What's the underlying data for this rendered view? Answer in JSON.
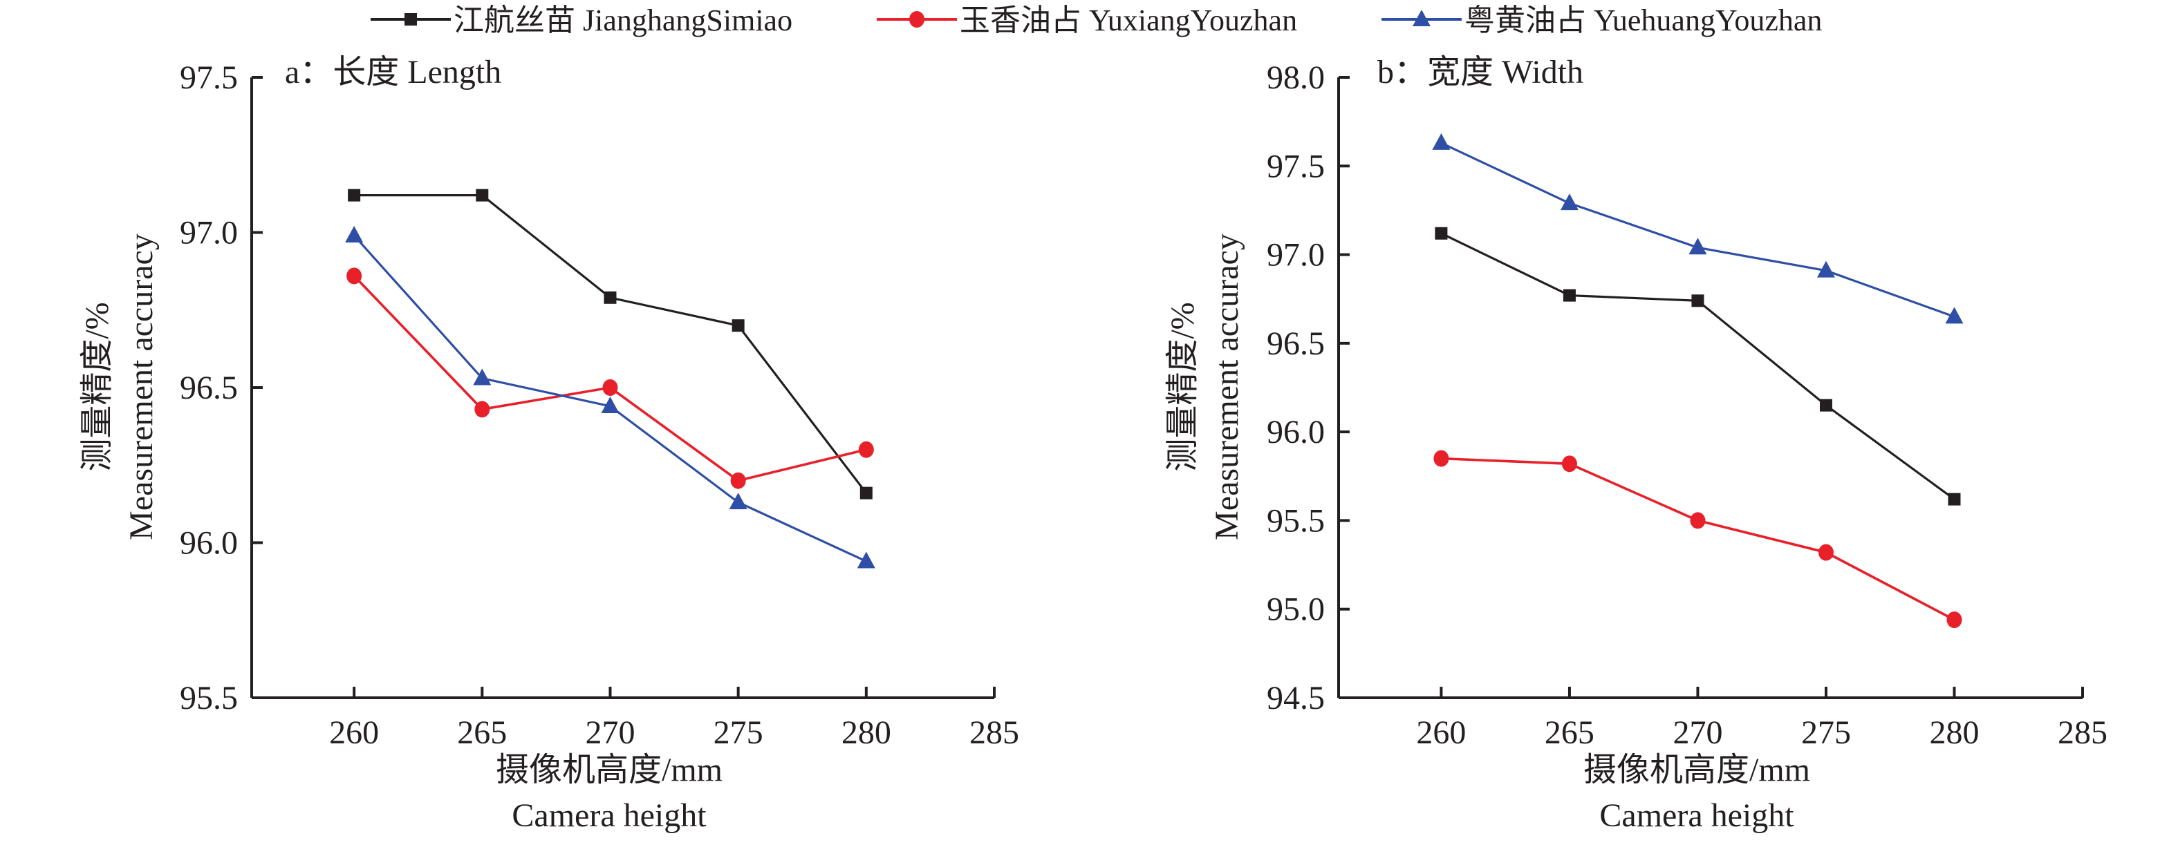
{
  "legend": [
    {
      "name": "江航丝苗 JianghangSimiao",
      "color": "#231f20",
      "marker": "square"
    },
    {
      "name": "玉香油占 YuxiangYouzhan",
      "color": "#e8202a",
      "marker": "circle"
    },
    {
      "name": "粤黄油占 YuehuangYouzhan",
      "color": "#2e4fa5",
      "marker": "triangle"
    }
  ],
  "chart_data": [
    {
      "type": "line",
      "title": "a：长度 Length",
      "xlabel": "摄像机高度/mm",
      "xlabel2": "Camera height",
      "ylabel": "测量精度/%",
      "ylabel2": "Measurement accuracy",
      "x": [
        260,
        265,
        270,
        275,
        280
      ],
      "xticks": [
        260,
        265,
        270,
        275,
        280,
        285
      ],
      "xlim": [
        256,
        285
      ],
      "ylim": [
        95.5,
        97.5
      ],
      "yticks": [
        "95.5",
        "96.0",
        "96.5",
        "97.0",
        "97.5"
      ],
      "grid": false,
      "series": [
        {
          "name": "江航丝苗 JianghangSimiao",
          "values": [
            97.12,
            97.12,
            96.79,
            96.7,
            96.16
          ]
        },
        {
          "name": "玉香油占 YuxiangYouzhan",
          "values": [
            96.86,
            96.43,
            96.5,
            96.2,
            96.3
          ]
        },
        {
          "name": "粤黄油占 YuehuangYouzhan",
          "values": [
            96.99,
            96.53,
            96.44,
            96.13,
            95.94
          ]
        }
      ]
    },
    {
      "type": "line",
      "title": "b：宽度 Width",
      "xlabel": "摄像机高度/mm",
      "xlabel2": "Camera height",
      "ylabel": "测量精度/%",
      "ylabel2": "Measurement accuracy",
      "x": [
        260,
        265,
        270,
        275,
        280
      ],
      "xticks": [
        260,
        265,
        270,
        275,
        280,
        285
      ],
      "xlim": [
        256,
        285
      ],
      "ylim": [
        94.5,
        98.0
      ],
      "yticks": [
        "94.5",
        "95.0",
        "95.5",
        "96.0",
        "96.5",
        "97.0",
        "97.5",
        "98.0"
      ],
      "grid": false,
      "series": [
        {
          "name": "江航丝苗 JianghangSimiao",
          "values": [
            97.12,
            96.77,
            96.74,
            96.15,
            95.62
          ]
        },
        {
          "name": "玉香油占 YuxiangYouzhan",
          "values": [
            95.85,
            95.82,
            95.5,
            95.32,
            94.94
          ]
        },
        {
          "name": "粤黄油占 YuehuangYouzhan",
          "values": [
            97.63,
            97.29,
            97.04,
            96.91,
            96.65
          ]
        }
      ]
    }
  ]
}
